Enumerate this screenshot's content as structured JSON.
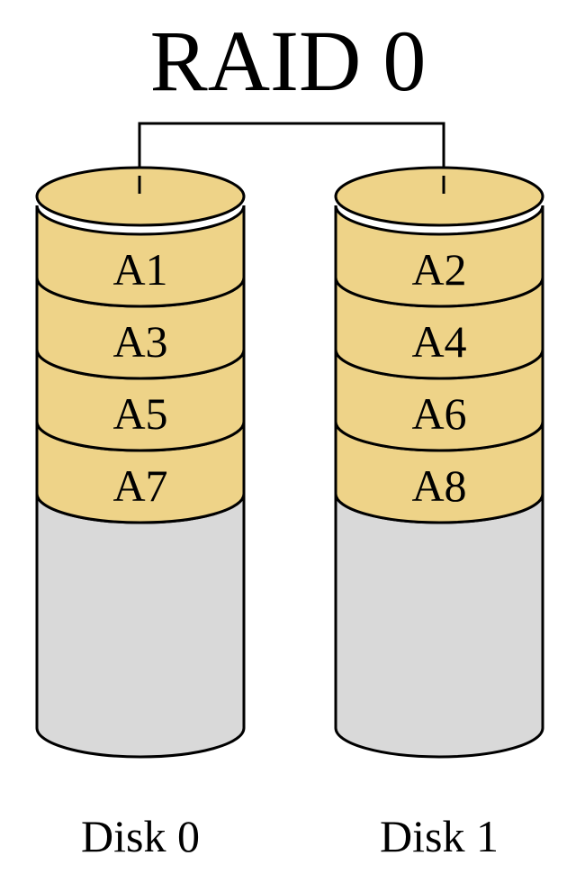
{
  "title": "RAID 0",
  "colors": {
    "block_fill": "#EED388",
    "free_fill": "#D9D9D9",
    "stroke": "#000000",
    "background": "#FFFFFF"
  },
  "disks": [
    {
      "label": "Disk 0",
      "blocks": [
        "A1",
        "A3",
        "A5",
        "A7"
      ]
    },
    {
      "label": "Disk 1",
      "blocks": [
        "A2",
        "A4",
        "A6",
        "A8"
      ]
    }
  ]
}
